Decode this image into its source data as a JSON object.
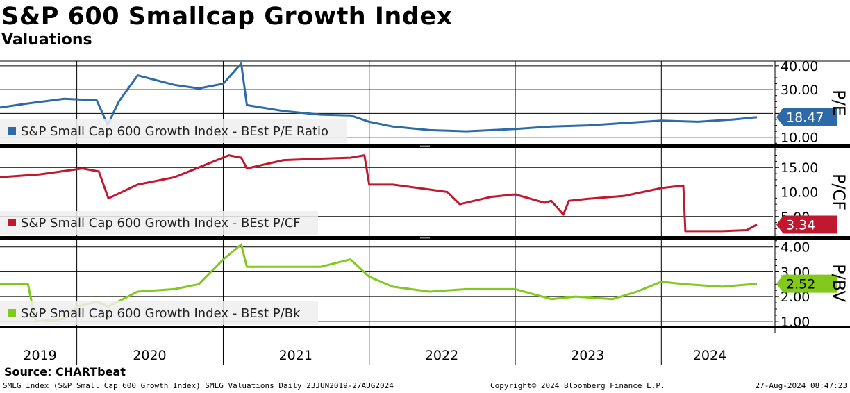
{
  "header": {
    "title": "S&P 600 Smallcap Growth Index",
    "subtitle": "Valuations"
  },
  "source": "Source: CHARTbeat",
  "footer": {
    "left": "SMLG Index (S&P Small Cap 600 Growth Index) SMLG Valuations  Daily 23JUN2019-27AUG2024",
    "middle": "Copyright© 2024 Bloomberg Finance L.P.",
    "right": "27-Aug-2024 08:47:23"
  },
  "chart_data": {
    "type": "line",
    "x_axis": {
      "labels": [
        "2019",
        "2020",
        "2021",
        "2022",
        "2023",
        "2024"
      ],
      "range": [
        "2019-06-23",
        "2024-08-27"
      ]
    },
    "panels": [
      {
        "ylabel": "P/E",
        "ylim": [
          7,
          42
        ],
        "ticks": [
          "10.00",
          "20.00",
          "30.00",
          "40.00"
        ],
        "tick_values": [
          10,
          20,
          30,
          40
        ],
        "last_value": "18.47",
        "series": [
          {
            "name": "S&P Small Cap 600 Growth Index - BEst P/E Ratio",
            "color": "#2e6aa6",
            "x": [
              "2019-06-23",
              "2019-09-01",
              "2019-12-01",
              "2020-02-20",
              "2020-03-18",
              "2020-04-15",
              "2020-06-01",
              "2020-09-01",
              "2020-11-01",
              "2021-01-01",
              "2021-02-15",
              "2021-03-01",
              "2021-06-01",
              "2021-09-01",
              "2021-11-15",
              "2022-01-01",
              "2022-03-01",
              "2022-06-01",
              "2022-09-01",
              "2023-01-01",
              "2023-04-01",
              "2023-07-01",
              "2023-10-01",
              "2024-01-01",
              "2024-04-01",
              "2024-07-01",
              "2024-08-27"
            ],
            "values": [
              22.5,
              24.2,
              26.2,
              25.5,
              15.2,
              25.0,
              36.0,
              32.0,
              30.5,
              32.5,
              41.0,
              23.5,
              21.0,
              19.5,
              19.2,
              16.5,
              14.5,
              13.0,
              12.5,
              13.5,
              14.5,
              15.0,
              16.0,
              17.0,
              16.5,
              17.5,
              18.47
            ]
          }
        ]
      },
      {
        "ylabel": "P/CF",
        "ylim": [
          1,
          19
        ],
        "ticks": [
          "5.00",
          "10.00",
          "15.00"
        ],
        "tick_values": [
          5,
          10,
          15
        ],
        "last_value": "3.34",
        "series": [
          {
            "name": "S&P Small Cap 600 Growth Index - BEst P/CF",
            "color": "#c0182f",
            "x": [
              "2019-06-23",
              "2019-10-01",
              "2020-01-15",
              "2020-02-25",
              "2020-03-20",
              "2020-06-01",
              "2020-09-01",
              "2020-11-01",
              "2021-01-15",
              "2021-02-15",
              "2021-03-01",
              "2021-06-01",
              "2021-09-01",
              "2021-11-15",
              "2021-12-20",
              "2022-01-01",
              "2022-03-01",
              "2022-06-01",
              "2022-07-15",
              "2022-08-15",
              "2022-11-01",
              "2023-01-01",
              "2023-03-15",
              "2023-04-01",
              "2023-05-01",
              "2023-05-15",
              "2023-07-01",
              "2023-10-01",
              "2024-01-01",
              "2024-02-25",
              "2024-03-01",
              "2024-06-01",
              "2024-08-01",
              "2024-08-27"
            ],
            "values": [
              13.0,
              13.6,
              14.8,
              14.2,
              8.7,
              11.5,
              13.0,
              15.0,
              17.5,
              17.0,
              14.8,
              16.5,
              16.8,
              17.0,
              17.5,
              11.5,
              11.5,
              10.5,
              10.0,
              7.5,
              9.0,
              9.5,
              7.8,
              8.2,
              5.4,
              8.2,
              8.6,
              9.2,
              10.8,
              11.3,
              2.0,
              2.0,
              2.2,
              3.34
            ]
          }
        ]
      },
      {
        "ylabel": "P/BV",
        "ylim": [
          0.8,
          4.3
        ],
        "ticks": [
          "1.00",
          "2.00",
          "3.00",
          "4.00"
        ],
        "tick_values": [
          1,
          2,
          3,
          4
        ],
        "last_value": "2.52",
        "series": [
          {
            "name": "S&P Small Cap 600 Growth Index - BEst P/Bk",
            "color": "#82c91e",
            "x": [
              "2019-06-23",
              "2019-09-01",
              "2019-09-20",
              "2019-12-01",
              "2020-01-01",
              "2020-02-20",
              "2020-03-20",
              "2020-06-01",
              "2020-09-01",
              "2020-11-01",
              "2021-01-01",
              "2021-02-15",
              "2021-03-01",
              "2021-06-01",
              "2021-09-01",
              "2021-11-15",
              "2022-01-01",
              "2022-03-01",
              "2022-06-01",
              "2022-09-01",
              "2023-01-01",
              "2023-04-01",
              "2023-06-01",
              "2023-09-01",
              "2023-11-01",
              "2024-01-01",
              "2024-03-01",
              "2024-06-01",
              "2024-08-27"
            ],
            "values": [
              2.5,
              2.5,
              1.0,
              1.1,
              1.6,
              1.8,
              1.6,
              2.2,
              2.3,
              2.5,
              3.5,
              4.1,
              3.2,
              3.2,
              3.2,
              3.5,
              2.8,
              2.4,
              2.2,
              2.3,
              2.3,
              1.9,
              2.0,
              1.9,
              2.2,
              2.6,
              2.5,
              2.4,
              2.52
            ]
          }
        ]
      }
    ]
  }
}
